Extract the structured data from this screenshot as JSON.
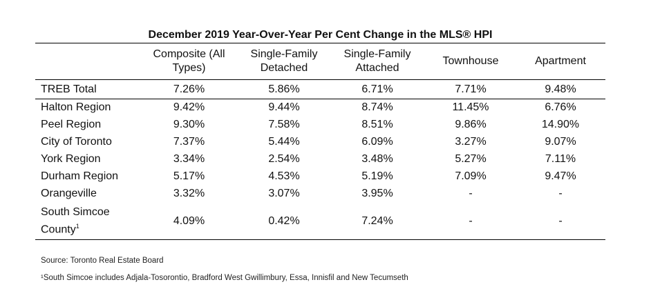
{
  "title": "December 2019 Year-Over-Year Per Cent Change in the MLS® HPI",
  "columns": [
    "Composite (All Types)",
    "Single-Family Detached",
    "Single-Family Attached",
    "Townhouse",
    "Apartment"
  ],
  "rows": [
    {
      "region": "TREB Total",
      "values": [
        "7.26%",
        "5.86%",
        "6.71%",
        "7.71%",
        "9.48%"
      ]
    },
    {
      "region": "Halton Region",
      "values": [
        "9.42%",
        "9.44%",
        "8.74%",
        "11.45%",
        "6.76%"
      ]
    },
    {
      "region": "Peel Region",
      "values": [
        "9.30%",
        "7.58%",
        "8.51%",
        "9.86%",
        "14.90%"
      ]
    },
    {
      "region": "City of Toronto",
      "values": [
        "7.37%",
        "5.44%",
        "6.09%",
        "3.27%",
        "9.07%"
      ]
    },
    {
      "region": "York Region",
      "values": [
        "3.34%",
        "2.54%",
        "3.48%",
        "5.27%",
        "7.11%"
      ]
    },
    {
      "region": "Durham Region",
      "values": [
        "5.17%",
        "4.53%",
        "5.19%",
        "7.09%",
        "9.47%"
      ]
    },
    {
      "region": "Orangeville",
      "values": [
        "3.32%",
        "3.07%",
        "3.95%",
        "-",
        "-"
      ]
    },
    {
      "region": "South Simcoe County",
      "footnote_mark": "1",
      "values": [
        "4.09%",
        "0.42%",
        "7.24%",
        "-",
        "-"
      ]
    }
  ],
  "source": "Source: Toronto Real Estate Board",
  "footnote": "¹South Simcoe includes Adjala-Tosorontio, Bradford West Gwillimbury, Essa, Innisfil and New Tecumseth"
}
